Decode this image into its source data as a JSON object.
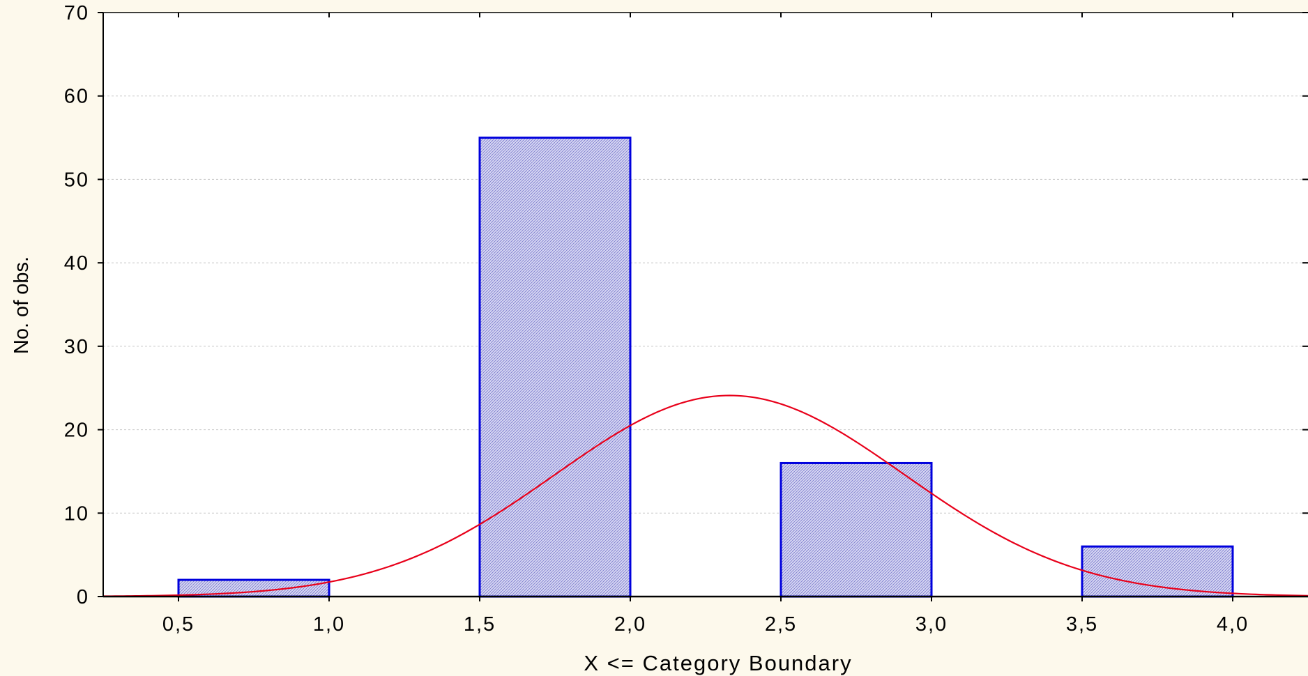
{
  "chart_data": {
    "type": "bar",
    "title": "",
    "xlabel": "X <= Category Boundary",
    "ylabel": "No. of obs.",
    "xlim": [
      0.25,
      4.25
    ],
    "ylim": [
      0,
      70
    ],
    "grid": true,
    "x_ticks": [
      {
        "value": 0.5,
        "label": "0,5"
      },
      {
        "value": 1.0,
        "label": "1,0"
      },
      {
        "value": 1.5,
        "label": "1,5"
      },
      {
        "value": 2.0,
        "label": "2,0"
      },
      {
        "value": 2.5,
        "label": "2,5"
      },
      {
        "value": 3.0,
        "label": "3,0"
      },
      {
        "value": 3.5,
        "label": "3,5"
      },
      {
        "value": 4.0,
        "label": "4,0"
      }
    ],
    "y_ticks": [
      0,
      10,
      20,
      30,
      40,
      50,
      60,
      70
    ],
    "bars": [
      {
        "from": 0.5,
        "to": 1.0,
        "value": 2
      },
      {
        "from": 1.5,
        "to": 2.0,
        "value": 55
      },
      {
        "from": 2.5,
        "to": 3.0,
        "value": 16
      },
      {
        "from": 3.5,
        "to": 4.0,
        "value": 6
      }
    ],
    "fitted_curve": {
      "type": "normal",
      "mean": 2.33,
      "sd": 0.58,
      "peak": 24.1
    },
    "colors": {
      "bar_stroke": "#0000dd",
      "bar_fill": "#c8c8ee",
      "curve": "#e8001a"
    }
  }
}
